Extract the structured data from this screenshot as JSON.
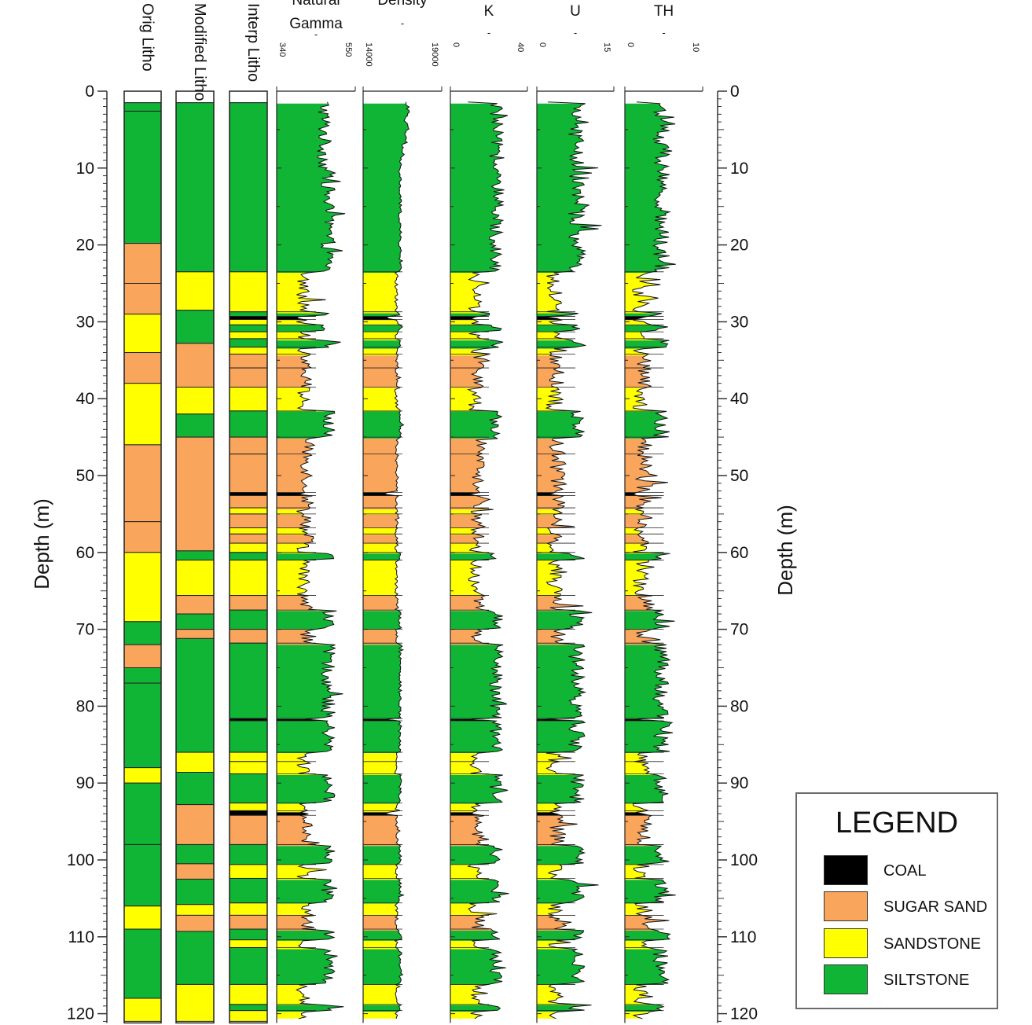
{
  "chart_data": {
    "type": "well_log",
    "depth_axis": {
      "label": "Depth (m)",
      "range": [
        0,
        120
      ],
      "ticks": [
        0,
        10,
        20,
        30,
        40,
        50,
        60,
        70,
        80,
        90,
        100,
        110,
        120
      ]
    },
    "lithology_columns": [
      {
        "name": "Orig Litho",
        "intervals": [
          {
            "top": 0,
            "bottom": 1.5,
            "lith": "NONE"
          },
          {
            "top": 1.5,
            "bottom": 2.6,
            "lith": "SILTSTONE"
          },
          {
            "top": 2.6,
            "bottom": 19.8,
            "lith": "SILTSTONE"
          },
          {
            "top": 19.8,
            "bottom": 25.0,
            "lith": "SUGAR SAND"
          },
          {
            "top": 25.0,
            "bottom": 29.0,
            "lith": "SUGAR SAND"
          },
          {
            "top": 29.0,
            "bottom": 34.0,
            "lith": "SANDSTONE"
          },
          {
            "top": 34.0,
            "bottom": 38.0,
            "lith": "SUGAR SAND"
          },
          {
            "top": 38.0,
            "bottom": 46.0,
            "lith": "SANDSTONE"
          },
          {
            "top": 46.0,
            "bottom": 56.0,
            "lith": "SUGAR SAND"
          },
          {
            "top": 56.0,
            "bottom": 60.0,
            "lith": "SUGAR SAND"
          },
          {
            "top": 60.0,
            "bottom": 69.0,
            "lith": "SANDSTONE"
          },
          {
            "top": 69.0,
            "bottom": 72.0,
            "lith": "SILTSTONE"
          },
          {
            "top": 72.0,
            "bottom": 75.0,
            "lith": "SUGAR SAND"
          },
          {
            "top": 75.0,
            "bottom": 77.0,
            "lith": "SILTSTONE"
          },
          {
            "top": 77.0,
            "bottom": 88.0,
            "lith": "SILTSTONE"
          },
          {
            "top": 88.0,
            "bottom": 90.0,
            "lith": "SANDSTONE"
          },
          {
            "top": 90.0,
            "bottom": 98.0,
            "lith": "SILTSTONE"
          },
          {
            "top": 98.0,
            "bottom": 106.0,
            "lith": "SILTSTONE"
          },
          {
            "top": 106.0,
            "bottom": 109.0,
            "lith": "SANDSTONE"
          },
          {
            "top": 109.0,
            "bottom": 118.0,
            "lith": "SILTSTONE"
          },
          {
            "top": 118.0,
            "bottom": 121.0,
            "lith": "SANDSTONE"
          }
        ]
      },
      {
        "name": "Modified Litho",
        "intervals": [
          {
            "top": 0,
            "bottom": 1.5,
            "lith": "NONE"
          },
          {
            "top": 1.5,
            "bottom": 23.5,
            "lith": "SILTSTONE"
          },
          {
            "top": 23.5,
            "bottom": 28.5,
            "lith": "SANDSTONE"
          },
          {
            "top": 28.5,
            "bottom": 32.8,
            "lith": "SILTSTONE"
          },
          {
            "top": 32.8,
            "bottom": 38.5,
            "lith": "SUGAR SAND"
          },
          {
            "top": 38.5,
            "bottom": 42.0,
            "lith": "SANDSTONE"
          },
          {
            "top": 42.0,
            "bottom": 45.0,
            "lith": "SILTSTONE"
          },
          {
            "top": 45.0,
            "bottom": 59.8,
            "lith": "SUGAR SAND"
          },
          {
            "top": 59.8,
            "bottom": 61.0,
            "lith": "SILTSTONE"
          },
          {
            "top": 61.0,
            "bottom": 65.6,
            "lith": "SANDSTONE"
          },
          {
            "top": 65.6,
            "bottom": 68.0,
            "lith": "SUGAR SAND"
          },
          {
            "top": 68.0,
            "bottom": 70.0,
            "lith": "SILTSTONE"
          },
          {
            "top": 70.0,
            "bottom": 71.2,
            "lith": "SUGAR SAND"
          },
          {
            "top": 71.2,
            "bottom": 86.0,
            "lith": "SILTSTONE"
          },
          {
            "top": 86.0,
            "bottom": 88.6,
            "lith": "SANDSTONE"
          },
          {
            "top": 88.6,
            "bottom": 92.8,
            "lith": "SILTSTONE"
          },
          {
            "top": 92.8,
            "bottom": 98.0,
            "lith": "SUGAR SAND"
          },
          {
            "top": 98.0,
            "bottom": 100.5,
            "lith": "SILTSTONE"
          },
          {
            "top": 100.5,
            "bottom": 102.5,
            "lith": "SUGAR SAND"
          },
          {
            "top": 102.5,
            "bottom": 105.8,
            "lith": "SILTSTONE"
          },
          {
            "top": 105.8,
            "bottom": 107.2,
            "lith": "SANDSTONE"
          },
          {
            "top": 107.2,
            "bottom": 109.3,
            "lith": "SUGAR SAND"
          },
          {
            "top": 109.3,
            "bottom": 116.2,
            "lith": "SILTSTONE"
          },
          {
            "top": 116.2,
            "bottom": 121.0,
            "lith": "SANDSTONE"
          }
        ]
      },
      {
        "name": "Interp Litho",
        "intervals": [
          {
            "top": 0,
            "bottom": 1.5,
            "lith": "NONE"
          },
          {
            "top": 1.5,
            "bottom": 23.5,
            "lith": "SILTSTONE"
          },
          {
            "top": 23.5,
            "bottom": 28.7,
            "lith": "SANDSTONE"
          },
          {
            "top": 28.7,
            "bottom": 29.3,
            "lith": "SILTSTONE"
          },
          {
            "top": 29.3,
            "bottom": 29.7,
            "lith": "COAL"
          },
          {
            "top": 29.7,
            "bottom": 30.4,
            "lith": "SANDSTONE"
          },
          {
            "top": 30.4,
            "bottom": 31.3,
            "lith": "SILTSTONE"
          },
          {
            "top": 31.3,
            "bottom": 32.2,
            "lith": "SANDSTONE"
          },
          {
            "top": 32.2,
            "bottom": 33.3,
            "lith": "SILTSTONE"
          },
          {
            "top": 33.3,
            "bottom": 34.2,
            "lith": "SANDSTONE"
          },
          {
            "top": 34.2,
            "bottom": 36.0,
            "lith": "SUGAR SAND"
          },
          {
            "top": 36.0,
            "bottom": 38.5,
            "lith": "SUGAR SAND"
          },
          {
            "top": 38.5,
            "bottom": 41.6,
            "lith": "SANDSTONE"
          },
          {
            "top": 41.6,
            "bottom": 45.0,
            "lith": "SILTSTONE"
          },
          {
            "top": 45.0,
            "bottom": 47.2,
            "lith": "SUGAR SAND"
          },
          {
            "top": 47.2,
            "bottom": 52.2,
            "lith": "SUGAR SAND"
          },
          {
            "top": 52.2,
            "bottom": 52.6,
            "lith": "COAL"
          },
          {
            "top": 52.6,
            "bottom": 54.2,
            "lith": "SUGAR SAND"
          },
          {
            "top": 54.2,
            "bottom": 55.0,
            "lith": "SANDSTONE"
          },
          {
            "top": 55.0,
            "bottom": 56.8,
            "lith": "SUGAR SAND"
          },
          {
            "top": 56.8,
            "bottom": 57.6,
            "lith": "SANDSTONE"
          },
          {
            "top": 57.6,
            "bottom": 58.8,
            "lith": "SUGAR SAND"
          },
          {
            "top": 58.8,
            "bottom": 60.0,
            "lith": "SANDSTONE"
          },
          {
            "top": 60.0,
            "bottom": 61.0,
            "lith": "SILTSTONE"
          },
          {
            "top": 61.0,
            "bottom": 65.6,
            "lith": "SANDSTONE"
          },
          {
            "top": 65.6,
            "bottom": 67.5,
            "lith": "SUGAR SAND"
          },
          {
            "top": 67.5,
            "bottom": 70.0,
            "lith": "SILTSTONE"
          },
          {
            "top": 70.0,
            "bottom": 71.8,
            "lith": "SUGAR SAND"
          },
          {
            "top": 71.8,
            "bottom": 81.6,
            "lith": "SILTSTONE"
          },
          {
            "top": 81.6,
            "bottom": 81.9,
            "lith": "COAL"
          },
          {
            "top": 81.9,
            "bottom": 86.0,
            "lith": "SILTSTONE"
          },
          {
            "top": 86.0,
            "bottom": 87.2,
            "lith": "SANDSTONE"
          },
          {
            "top": 87.2,
            "bottom": 88.8,
            "lith": "SANDSTONE"
          },
          {
            "top": 88.8,
            "bottom": 92.6,
            "lith": "SILTSTONE"
          },
          {
            "top": 92.6,
            "bottom": 93.6,
            "lith": "SANDSTONE"
          },
          {
            "top": 93.6,
            "bottom": 94.2,
            "lith": "COAL"
          },
          {
            "top": 94.2,
            "bottom": 98.0,
            "lith": "SUGAR SAND"
          },
          {
            "top": 98.0,
            "bottom": 100.6,
            "lith": "SILTSTONE"
          },
          {
            "top": 100.6,
            "bottom": 102.4,
            "lith": "SANDSTONE"
          },
          {
            "top": 102.4,
            "bottom": 105.6,
            "lith": "SILTSTONE"
          },
          {
            "top": 105.6,
            "bottom": 107.2,
            "lith": "SANDSTONE"
          },
          {
            "top": 107.2,
            "bottom": 109.0,
            "lith": "SUGAR SAND"
          },
          {
            "top": 109.0,
            "bottom": 110.4,
            "lith": "SILTSTONE"
          },
          {
            "top": 110.4,
            "bottom": 111.4,
            "lith": "SANDSTONE"
          },
          {
            "top": 111.4,
            "bottom": 116.2,
            "lith": "SILTSTONE"
          },
          {
            "top": 116.2,
            "bottom": 118.8,
            "lith": "SANDSTONE"
          },
          {
            "top": 118.8,
            "bottom": 119.6,
            "lith": "SILTSTONE"
          },
          {
            "top": 119.6,
            "bottom": 121.0,
            "lith": "SANDSTONE"
          }
        ]
      }
    ],
    "log_tracks": [
      {
        "name": "Natural Gamma",
        "unit": "-",
        "min": 340,
        "max": 550,
        "tick_labels": [
          "340",
          "550"
        ],
        "base": 50,
        "amp": 48,
        "noise": 18
      },
      {
        "name": "Density",
        "unit": "-",
        "min": 14000,
        "max": 19000,
        "tick_labels": [
          "14000",
          "19000"
        ],
        "base": 52,
        "amp": 40,
        "noise": 4
      },
      {
        "name": "K",
        "unit": "-",
        "min": 0,
        "max": 40,
        "tick_labels": [
          "0",
          "40"
        ],
        "base": 50,
        "amp": 42,
        "noise": 18
      },
      {
        "name": "U",
        "unit": "-",
        "min": 0,
        "max": 15,
        "tick_labels": [
          "0",
          "15"
        ],
        "base": 20,
        "amp": 45,
        "noise": 22
      },
      {
        "name": "TH",
        "unit": "-",
        "min": 0,
        "max": 10,
        "tick_labels": [
          "0",
          "10"
        ],
        "base": 20,
        "amp": 40,
        "noise": 22
      }
    ],
    "legend": {
      "title": "LEGEND",
      "placement": "bottom-right",
      "items": [
        {
          "label": "COAL",
          "color": "#000000"
        },
        {
          "label": "SUGAR SAND",
          "color": "#F9A55C"
        },
        {
          "label": "SANDSTONE",
          "color": "#FFFF00"
        },
        {
          "label": "SILTSTONE",
          "color": "#10B536"
        }
      ]
    },
    "colors": {
      "COAL": "#000000",
      "SUGAR SAND": "#F9A55C",
      "SANDSTONE": "#FFFF00",
      "SILTSTONE": "#10B536",
      "NONE": "#FFFFFF"
    }
  }
}
